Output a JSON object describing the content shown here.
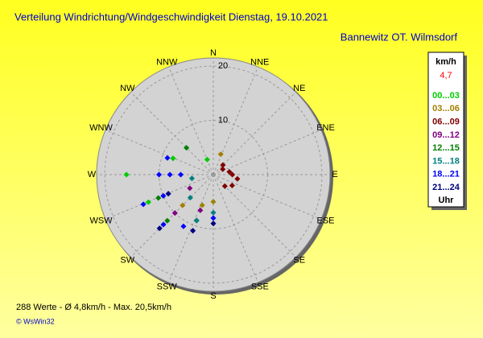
{
  "chart_data": {
    "type": "polar-scatter",
    "title": "Verteilung Windrichtung/Windgeschwindigkeit  Dienstag, 19.10.2021",
    "subtitle": "Bannewitz OT. Wilmsdorf",
    "legend_unit": "km/h",
    "legend_value": "4,7",
    "legend_footer": "Uhr",
    "directions": [
      "N",
      "NNE",
      "NE",
      "ENE",
      "E",
      "ESE",
      "SE",
      "SSE",
      "S",
      "SSW",
      "SW",
      "WSW",
      "W",
      "WNW",
      "NW",
      "NNW"
    ],
    "rlim": [
      0,
      21.5
    ],
    "rticks": [
      10,
      20
    ],
    "series": [
      {
        "name": "00...03",
        "color": "#00cc00",
        "direction": [
          270,
          292,
          247,
          338
        ],
        "speed": [
          16,
          8,
          13,
          3
        ]
      },
      {
        "name": "03...06",
        "color": "#a08000",
        "direction": [
          200,
          225,
          180,
          20
        ],
        "speed": [
          6,
          8,
          5,
          4
        ]
      },
      {
        "name": "06...09",
        "color": "#800000",
        "direction": [
          90,
          100,
          80,
          120,
          135,
          60,
          45
        ],
        "speed": [
          3.5,
          4.5,
          3,
          4,
          3,
          2,
          2.5
        ]
      },
      {
        "name": "09...12",
        "color": "#800080",
        "direction": [
          225,
          200,
          240
        ],
        "speed": [
          10,
          7,
          5
        ]
      },
      {
        "name": "12...15",
        "color": "#008000",
        "direction": [
          247,
          225,
          200,
          315
        ],
        "speed": [
          11,
          12,
          9,
          7
        ]
      },
      {
        "name": "15...18",
        "color": "#008080",
        "direction": [
          200,
          180,
          225,
          260
        ],
        "speed": [
          9,
          7,
          6,
          4
        ]
      },
      {
        "name": "18...21",
        "color": "#0000ff",
        "direction": [
          270,
          270,
          270,
          247,
          247,
          225,
          210,
          180,
          290
        ],
        "speed": [
          10,
          8,
          6,
          14,
          10,
          13,
          11,
          8,
          9
        ]
      },
      {
        "name": "21...24",
        "color": "#000080",
        "direction": [
          247,
          225,
          200,
          180
        ],
        "speed": [
          9,
          14,
          11,
          9
        ]
      }
    ],
    "footer_stats": "288 Werte   -   Ø 4,8km/h  -  Max. 20,5km/h",
    "copyright": "© WsWin32"
  }
}
